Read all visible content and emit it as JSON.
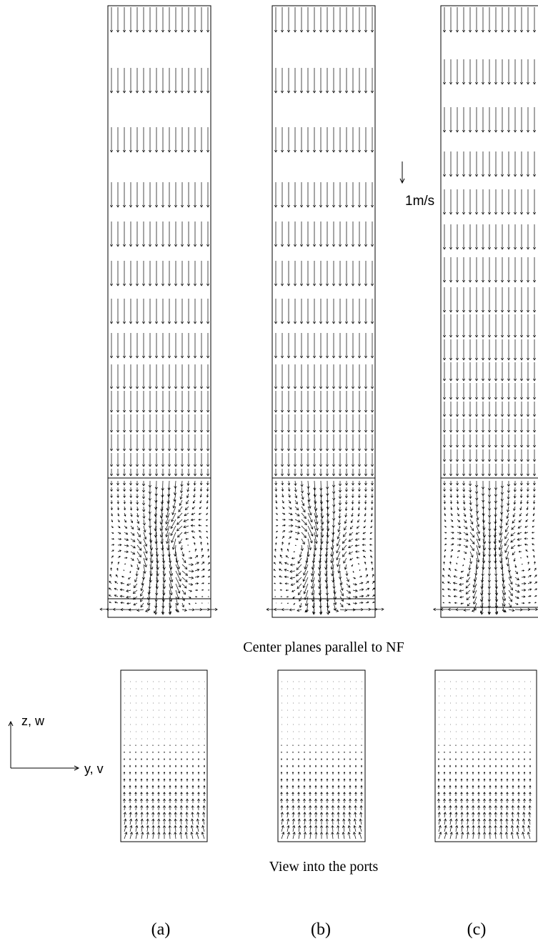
{
  "labels": {
    "scale": "1m/s",
    "upper_caption": "Center planes parallel to NF",
    "lower_caption": "View into the ports",
    "panels": [
      "(a)",
      "(b)",
      "(c)"
    ],
    "axis_vertical": "z, w",
    "axis_horizontal": "y, v"
  }
}
